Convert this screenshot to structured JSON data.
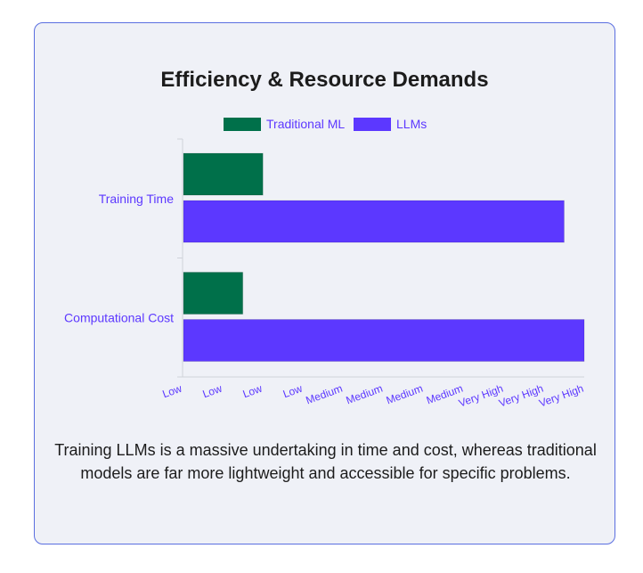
{
  "card": {
    "title": "Efficiency & Resource Demands",
    "caption": "Training LLMs is a massive undertaking in time and cost, whereas traditional models are far more lightweight and accessible for specific problems."
  },
  "colors": {
    "traditional": "#00704a",
    "llms": "#5c38ff",
    "label": "#5c38ff",
    "axis": "#cfd2da"
  },
  "chart_data": {
    "type": "bar",
    "orientation": "horizontal",
    "categories": [
      "Training Time",
      "Computational Cost"
    ],
    "series": [
      {
        "name": "Traditional ML",
        "values": [
          2,
          1.5
        ]
      },
      {
        "name": "LLMs",
        "values": [
          9.5,
          10
        ]
      }
    ],
    "x_tick_labels": [
      "Low",
      "Low",
      "Low",
      "Low",
      "Medium",
      "Medium",
      "Medium",
      "Medium",
      "Very High",
      "Very High",
      "Very High"
    ],
    "xlim": [
      0,
      10
    ],
    "legend": "top",
    "grid": false
  }
}
